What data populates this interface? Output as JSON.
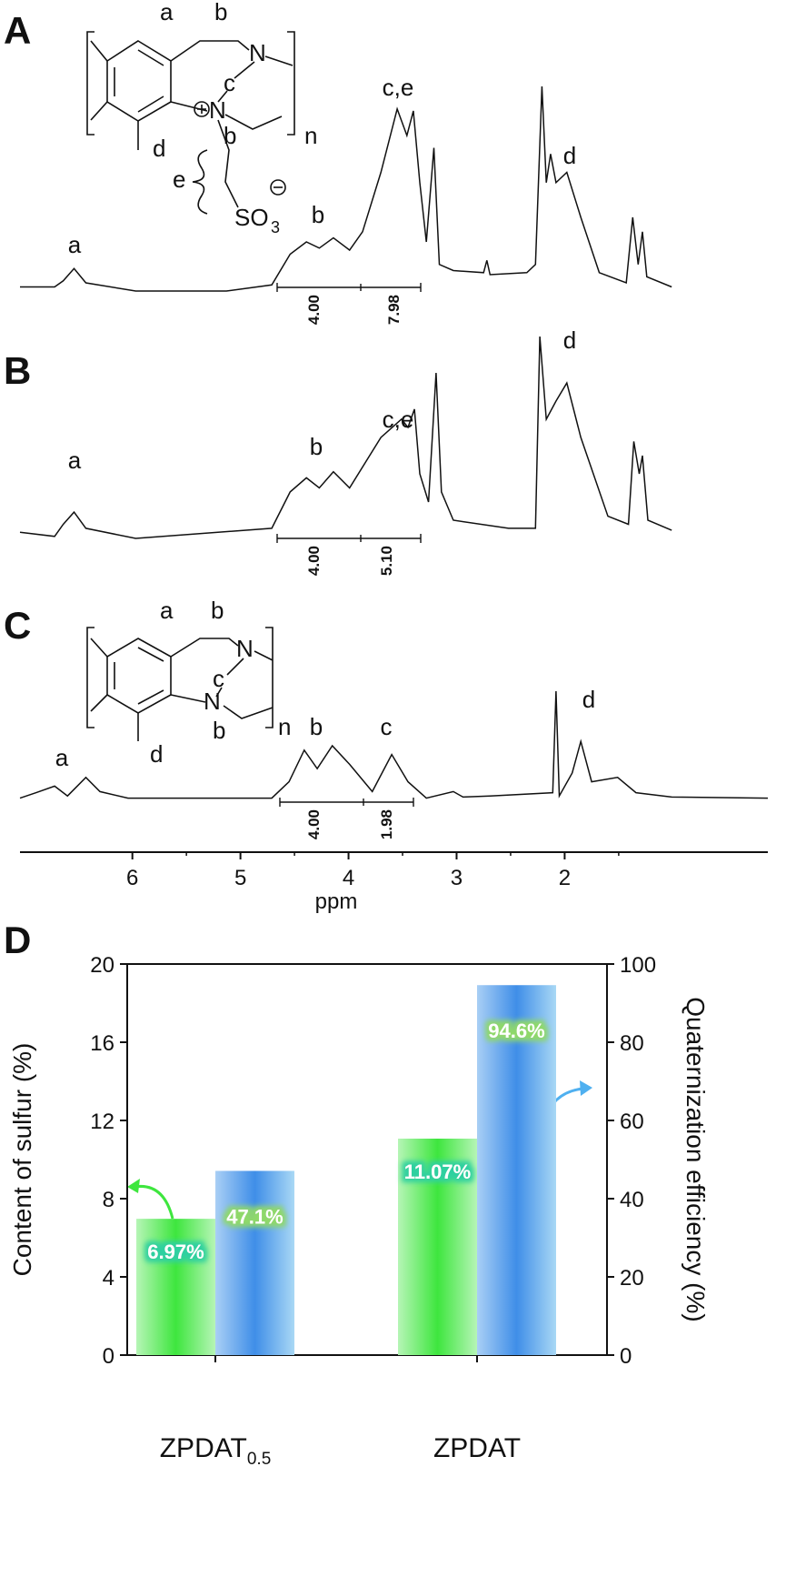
{
  "panels": [
    "A",
    "B",
    "C",
    "D"
  ],
  "structures": [
    {
      "labels": [
        "a",
        "b",
        "N",
        "c",
        "N",
        "b",
        "n",
        "d",
        "e",
        "SO",
        "3"
      ]
    },
    {
      "labels": [
        "a",
        "b",
        "N",
        "c",
        "N",
        "b",
        "n",
        "d"
      ]
    }
  ],
  "chart_data": [
    {
      "type": "line",
      "color": "#111111",
      "xlim": [
        7.04,
        0.12
      ],
      "ylim": [
        0,
        100
      ],
      "x": [
        7.04,
        6.72,
        6.64,
        6.54,
        6.43,
        5.97,
        5.13,
        4.71,
        4.54,
        4.39,
        4.27,
        4.14,
        3.99,
        3.87,
        3.7,
        3.55,
        3.46,
        3.4,
        3.34,
        3.28,
        3.21,
        3.16,
        3.03,
        2.75,
        2.72,
        2.69,
        2.35,
        2.27,
        2.21,
        2.17,
        2.13,
        2.08,
        1.98,
        1.85,
        1.68,
        1.43,
        1.37,
        1.32,
        1.28,
        1.24,
        1.01
      ],
      "values": [
        2,
        2,
        5,
        11,
        4,
        0,
        0,
        3,
        18,
        24,
        21,
        26,
        20,
        29,
        58,
        89,
        76,
        88,
        53,
        24,
        70,
        13,
        10,
        9,
        15,
        8,
        9,
        13,
        100,
        53,
        67,
        53,
        58,
        36,
        9,
        4,
        36,
        13,
        29,
        7,
        2
      ],
      "annotations": [
        "a",
        "b",
        "c,e",
        "d"
      ],
      "integrals": [
        "4.00",
        "7.98"
      ]
    },
    {
      "type": "line",
      "color": "#111111",
      "xlim": [
        7.04,
        0.12
      ],
      "ylim": [
        0,
        100
      ],
      "x": [
        7.04,
        6.72,
        6.64,
        6.54,
        6.43,
        5.97,
        4.71,
        4.54,
        4.39,
        4.27,
        4.14,
        3.99,
        3.7,
        3.51,
        3.45,
        3.39,
        3.34,
        3.26,
        3.19,
        3.14,
        3.03,
        2.52,
        2.27,
        2.23,
        2.17,
        2.08,
        1.98,
        1.85,
        1.6,
        1.41,
        1.36,
        1.31,
        1.28,
        1.23,
        1.01
      ],
      "values": [
        3,
        1,
        7,
        13,
        5,
        0,
        5,
        23,
        30,
        25,
        33,
        25,
        50,
        59,
        55,
        64,
        32,
        18,
        82,
        23,
        9,
        5,
        5,
        100,
        59,
        68,
        77,
        50,
        11,
        7,
        48,
        32,
        41,
        9,
        4
      ],
      "annotations": [
        "a",
        "b",
        "c,e",
        "d"
      ],
      "integrals": [
        "4.00",
        "5.10"
      ]
    },
    {
      "type": "line",
      "color": "#111111",
      "xlim": [
        7.04,
        0.12
      ],
      "ylim": [
        0,
        100
      ],
      "x": [
        7.04,
        6.89,
        6.72,
        6.6,
        6.43,
        6.3,
        6.04,
        4.71,
        4.55,
        4.41,
        4.29,
        4.15,
        3.99,
        3.78,
        3.6,
        3.45,
        3.28,
        3.03,
        2.94,
        2.69,
        2.11,
        2.08,
        2.05,
        1.93,
        1.85,
        1.75,
        1.51,
        1.34,
        1.01,
        0.12
      ],
      "values": [
        2,
        7,
        13,
        4,
        21,
        8,
        2,
        2,
        17,
        46,
        29,
        50,
        33,
        8,
        42,
        17,
        2,
        8,
        3,
        4,
        7,
        100,
        4,
        25,
        54,
        17,
        21,
        7,
        3,
        2
      ],
      "annotations": [
        "a",
        "b",
        "c",
        "d"
      ],
      "integrals": [
        "4.00",
        "1.98"
      ],
      "xticks": [
        6,
        5,
        4,
        3,
        2
      ],
      "xlabel": "ppm"
    },
    {
      "type": "bar",
      "categories": [
        "ZPDAT0.5",
        "ZPDAT"
      ],
      "series": [
        {
          "values": [
            6.97,
            11.07
          ],
          "value_labels": [
            "6.97%",
            "11.07%"
          ],
          "color": "#3ee63e"
        },
        {
          "values": [
            47.1,
            94.6
          ],
          "value_labels": [
            "47.1%",
            "94.6%"
          ],
          "color": "#3f8ee8",
          "axis": "y2"
        }
      ],
      "ylim": [
        0,
        20
      ],
      "yticks": [
        0,
        4,
        8,
        12,
        16,
        20
      ],
      "y2lim": [
        0,
        100
      ],
      "y2ticks": [
        0,
        20,
        40,
        60,
        80,
        100
      ],
      "ylabel": "Content of sulfur (%)",
      "y2label": "Quaternization efficiency (%)"
    }
  ]
}
